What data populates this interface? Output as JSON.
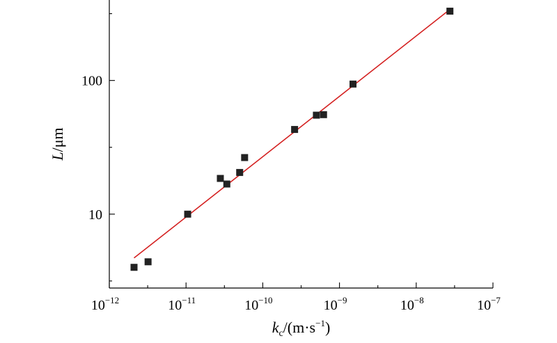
{
  "chart_data": {
    "type": "scatter",
    "x_scale": "log",
    "y_scale": "log",
    "xlim": [
      1e-12,
      1e-07
    ],
    "ylim": [
      2.8,
      400
    ],
    "xlabel": {
      "var": "k",
      "sub": "c",
      "rest_before_sup": "/(m·s",
      "sup": "−1",
      "rest_after_sup": ")"
    },
    "ylabel": {
      "var": "L",
      "rest": "/μm"
    },
    "x_ticks": [
      {
        "base": "10",
        "exp": "−12"
      },
      {
        "base": "10",
        "exp": "−11"
      },
      {
        "base": "10",
        "exp": "−10"
      },
      {
        "base": "10",
        "exp": "−9"
      },
      {
        "base": "10",
        "exp": "−8"
      },
      {
        "base": "10",
        "exp": "−7"
      }
    ],
    "x_tick_values": [
      1e-12,
      1e-11,
      1e-10,
      1e-09,
      1e-08,
      1e-07
    ],
    "y_ticks": [
      {
        "value": 10,
        "label": "10"
      },
      {
        "value": 100,
        "label": "100"
      }
    ],
    "points": [
      {
        "x": 2.1e-12,
        "y": 4.0
      },
      {
        "x": 3.2e-12,
        "y": 4.4
      },
      {
        "x": 1.05e-11,
        "y": 10.0
      },
      {
        "x": 2.8e-11,
        "y": 18.5
      },
      {
        "x": 3.4e-11,
        "y": 16.8
      },
      {
        "x": 5e-11,
        "y": 20.5
      },
      {
        "x": 5.8e-11,
        "y": 26.5
      },
      {
        "x": 2.6e-10,
        "y": 43.0
      },
      {
        "x": 5e-10,
        "y": 55.0
      },
      {
        "x": 6.2e-10,
        "y": 55.5
      },
      {
        "x": 1.5e-09,
        "y": 94.0
      },
      {
        "x": 2.75e-08,
        "y": 330.0
      }
    ],
    "fit_line": {
      "x": [
        2.1e-12,
        2.75e-08
      ],
      "y": [
        4.7,
        340.0
      ]
    },
    "grid": false,
    "colors": {
      "marker": "#222222",
      "fit_line": "#d42020",
      "axis": "#000000"
    }
  }
}
